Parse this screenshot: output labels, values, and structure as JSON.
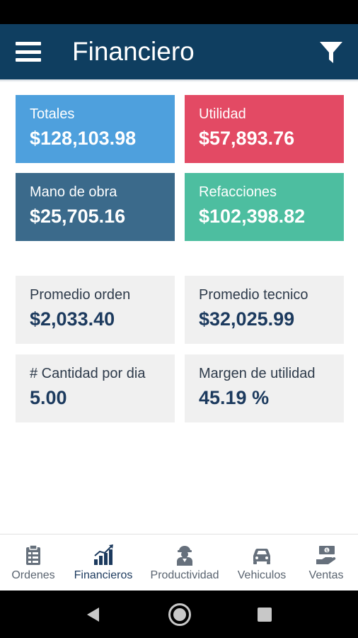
{
  "app_bar": {
    "title": "Financiero",
    "menu_icon": "hamburger-menu-icon",
    "filter_icon": "filter-funnel-icon",
    "color": "#0f3e60"
  },
  "cards": [
    {
      "label": "Totales",
      "value": "$128,103.98",
      "color": "#4ea0dd"
    },
    {
      "label": "Utilidad",
      "value": "$57,893.76",
      "color": "#e34a64"
    },
    {
      "label": "Mano de obra",
      "value": "$25,705.16",
      "color": "#3b6a8b"
    },
    {
      "label": "Refacciones",
      "value": "$102,398.82",
      "color": "#4dbea0"
    },
    {
      "label": "Promedio orden",
      "value": "$2,033.40"
    },
    {
      "label": "Promedio tecnico",
      "value": "$32,025.99"
    },
    {
      "label": "# Cantidad por dia",
      "value": "5.00"
    },
    {
      "label": "Margen de utilidad",
      "value": "45.19 %"
    }
  ],
  "bottom_nav": {
    "items": [
      {
        "label": "Ordenes",
        "icon": "clipboard-icon"
      },
      {
        "label": "Financieros",
        "icon": "bar-chart-icon",
        "active": true
      },
      {
        "label": "Productividad",
        "icon": "technician-icon"
      },
      {
        "label": "Vehiculos",
        "icon": "car-icon"
      },
      {
        "label": "Ventas",
        "icon": "money-hand-icon"
      }
    ]
  },
  "system_nav": {
    "back": "back-triangle-icon",
    "home": "home-circle-icon",
    "recents": "recents-square-icon"
  }
}
